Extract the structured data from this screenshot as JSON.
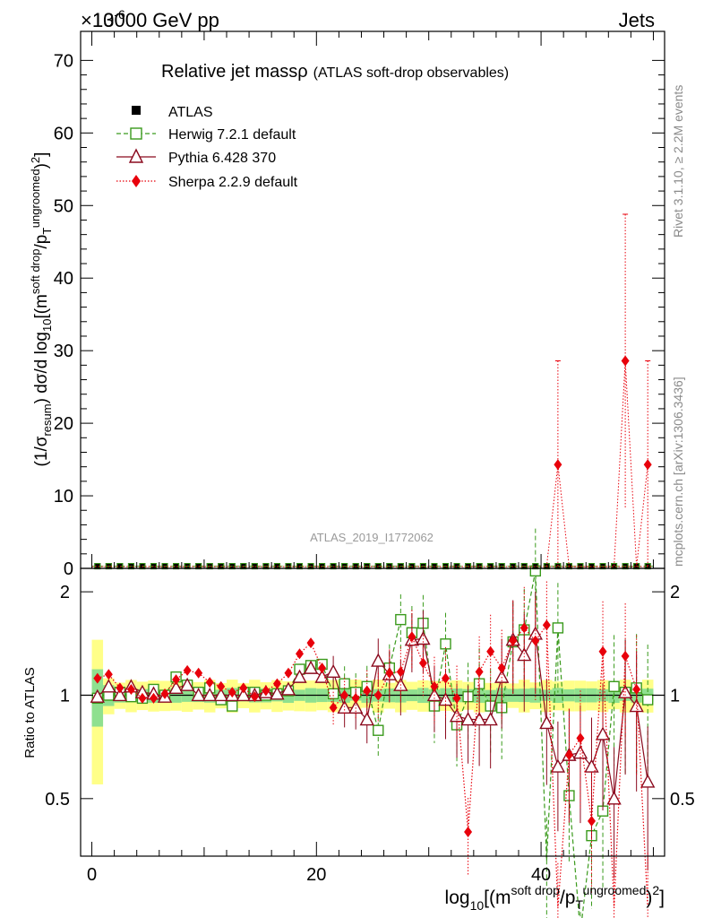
{
  "header": {
    "left": "13000 GeV pp",
    "right": "Jets",
    "exponent": "×10",
    "exponent_power": "-6"
  },
  "side_text": {
    "rivet": "Rivet 3.1.10, ≥ 2.2M events",
    "mcplots": "mcplots.cern.ch [arXiv:1306.3436]"
  },
  "colors": {
    "atlas": "#000000",
    "herwig": "#3a9a1c",
    "pythia": "#8b0a1e",
    "sherpa": "#e8000b",
    "band_inner": "#8fe08f",
    "band_outer": "#ffff88"
  },
  "chart_data": {
    "type": "scatter",
    "title": "Relative jet mass",
    "title_symbol": "ρ",
    "subtitle": "(ATLAS soft-drop observables)",
    "watermark": "ATLAS_2019_I1772062",
    "xlabel": "log10[(m^soft drop/pT^ungroomed)^2]",
    "ylabel": "(1/σresum) dσ/d log10[(m^soft drop/pT^ungroomed)^2]",
    "ratio_ylabel": "Ratio to ATLAS",
    "xlim": [
      -1,
      51
    ],
    "ylim": [
      0,
      74
    ],
    "ratio_ylim": [
      0.34,
      2.34
    ],
    "x_ticks": [
      "0",
      "20",
      "40"
    ],
    "y_ticks": [
      "0",
      "10",
      "20",
      "30",
      "40",
      "50",
      "60",
      "70"
    ],
    "ratio_ticks": [
      "0.5",
      "1",
      "2"
    ],
    "legend": [
      "ATLAS",
      "Herwig 7.2.1 default",
      "Pythia 6.428 370",
      "Sherpa 2.2.9 default"
    ],
    "x": [
      0.5,
      1.5,
      2.5,
      3.5,
      4.5,
      5.5,
      6.5,
      7.5,
      8.5,
      9.5,
      10.5,
      11.5,
      12.5,
      13.5,
      14.5,
      15.5,
      16.5,
      17.5,
      18.5,
      19.5,
      20.5,
      21.5,
      22.5,
      23.5,
      24.5,
      25.5,
      26.5,
      27.5,
      28.5,
      29.5,
      30.5,
      31.5,
      32.5,
      33.5,
      34.5,
      35.5,
      36.5,
      37.5,
      38.5,
      39.5,
      40.5,
      41.5,
      42.5,
      43.5,
      44.5,
      45.5,
      46.5,
      47.5,
      48.5,
      49.5
    ],
    "main_values": {
      "atlas": [
        0.3,
        0.3,
        0.3,
        0.3,
        0.3,
        0.3,
        0.3,
        0.3,
        0.3,
        0.3,
        0.3,
        0.3,
        0.3,
        0.3,
        0.3,
        0.3,
        0.3,
        0.3,
        0.3,
        0.3,
        0.3,
        0.3,
        0.3,
        0.3,
        0.3,
        0.3,
        0.3,
        0.3,
        0.3,
        0.3,
        0.3,
        0.3,
        0.3,
        0.3,
        0.3,
        0.3,
        0.3,
        0.3,
        0.3,
        0.3,
        0.3,
        0.3,
        0.3,
        0.3,
        0.3,
        0.3,
        0.3,
        0.3,
        0.3,
        0.3
      ],
      "sherpa_peaks": [
        {
          "x": 41.5,
          "y": 14.3,
          "err": 14.3
        },
        {
          "x": 47.5,
          "y": 28.6,
          "err": 20.2
        },
        {
          "x": 49.5,
          "y": 14.3,
          "err": 14.3
        }
      ]
    },
    "ratio": {
      "herwig": [
        0.98,
        1.0,
        1.02,
        0.99,
        0.98,
        1.04,
        1.0,
        1.13,
        1.07,
        1.02,
        1.05,
        0.97,
        0.93,
        1.02,
        1.02,
        1.0,
        1.01,
        1.03,
        1.19,
        1.22,
        1.23,
        1.01,
        1.08,
        1.02,
        1.06,
        0.79,
        1.2,
        1.66,
        1.52,
        1.62,
        0.93,
        1.41,
        0.82,
        0.99,
        1.08,
        0.93,
        0.92,
        1.43,
        1.55,
        2.3,
        0.33,
        1.57,
        0.51,
        0.17,
        0.39,
        0.46,
        1.06,
        1.02,
        1.05,
        0.97
      ],
      "pythia": [
        0.99,
        1.06,
        1.0,
        1.06,
        1.02,
        1.01,
        0.99,
        1.05,
        1.07,
        1.0,
        1.0,
        1.0,
        1.0,
        1.0,
        1.0,
        1.02,
        1.01,
        1.04,
        1.13,
        1.2,
        1.13,
        1.17,
        0.92,
        0.92,
        0.85,
        1.26,
        1.15,
        1.07,
        1.45,
        1.46,
        1.0,
        0.97,
        0.87,
        0.85,
        0.85,
        0.85,
        1.13,
        1.45,
        1.31,
        1.51,
        0.83,
        0.62,
        0.67,
        0.68,
        0.62,
        0.77,
        0.5,
        1.02,
        0.93,
        0.56
      ],
      "sherpa": [
        1.12,
        1.15,
        1.05,
        1.04,
        0.98,
        0.98,
        1.01,
        1.11,
        1.18,
        1.16,
        1.09,
        1.06,
        1.02,
        1.05,
        0.99,
        1.03,
        1.08,
        1.16,
        1.32,
        1.42,
        1.2,
        0.92,
        1.0,
        0.98,
        1.03,
        1.0,
        1.16,
        1.17,
        1.48,
        1.24,
        1.06,
        1.12,
        0.98,
        0.4,
        1.17,
        1.34,
        1.2,
        1.44,
        1.57,
        1.44,
        1.6,
        0.24,
        0.67,
        0.75,
        0.43,
        1.34,
        0.24,
        1.3,
        1.04,
        0.24
      ]
    }
  }
}
